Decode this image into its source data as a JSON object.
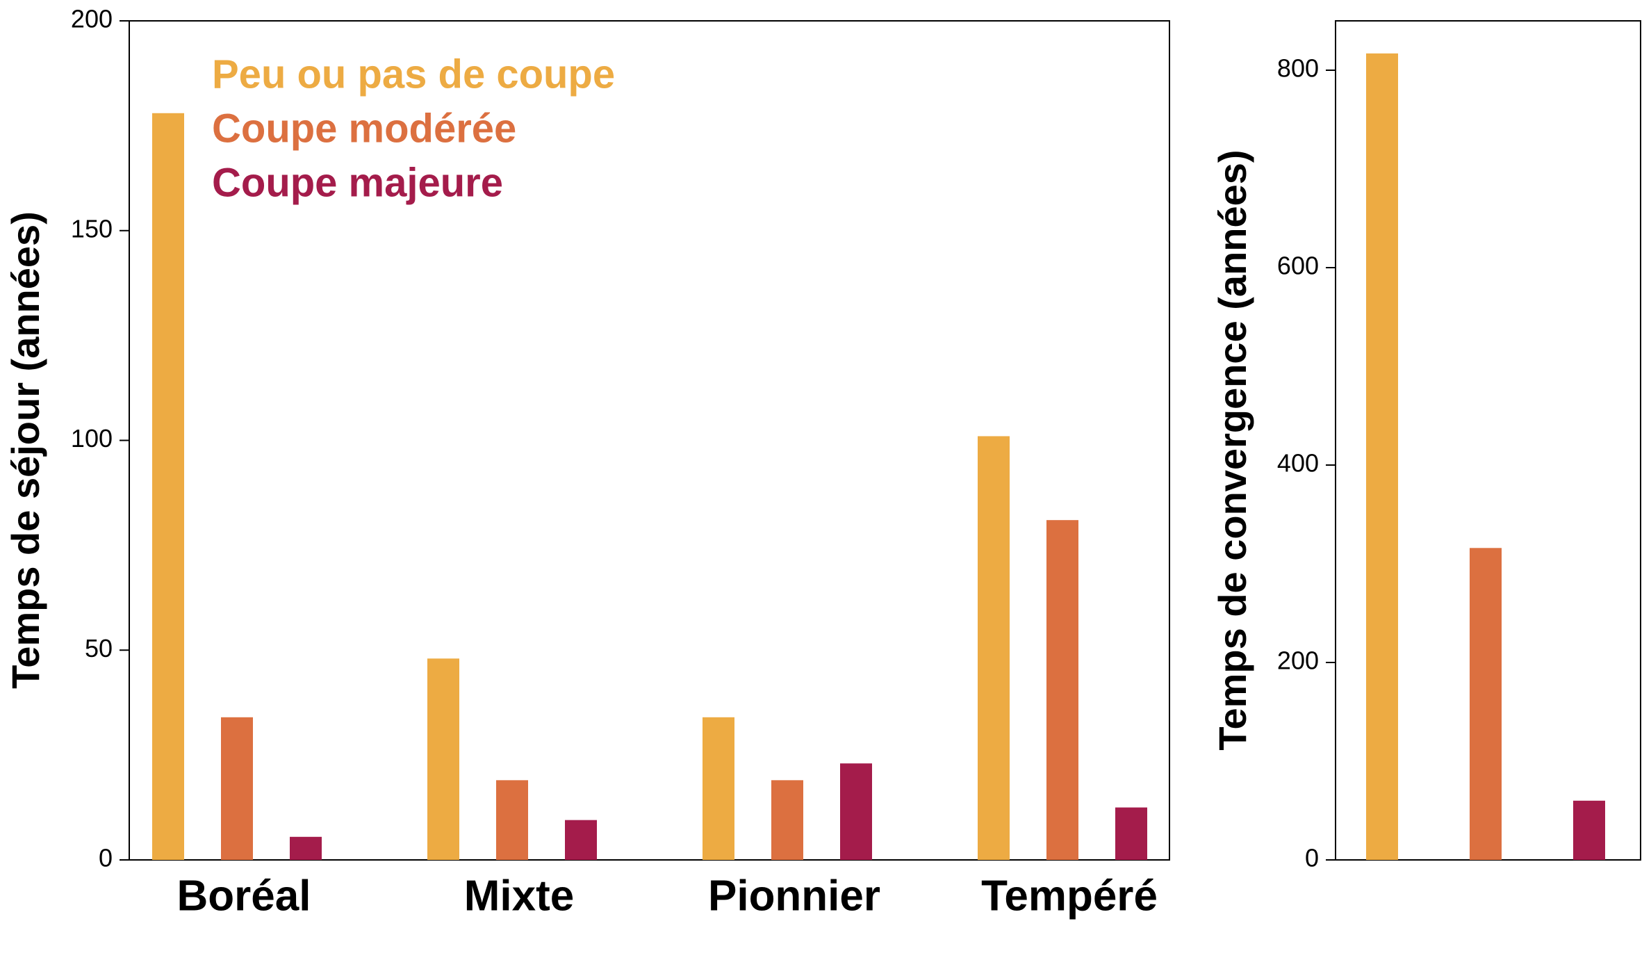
{
  "chart_data": [
    {
      "type": "bar",
      "y_label": "Temps de séjour (années)",
      "categories": [
        "Boréal",
        "Mixte",
        "Pionnier",
        "Tempéré"
      ],
      "series": [
        {
          "name": "Peu ou pas de coupe",
          "color": "#edab43",
          "values": [
            178,
            48,
            34,
            101
          ]
        },
        {
          "name": "Coupe modérée",
          "color": "#dc7040",
          "values": [
            34,
            19,
            19,
            81
          ]
        },
        {
          "name": "Coupe majeure",
          "color": "#a41c4b",
          "values": [
            5.5,
            9.5,
            23,
            12.5
          ]
        }
      ],
      "ylim": [
        0,
        200
      ],
      "yticks": [
        0,
        50,
        100,
        150,
        200
      ],
      "legend": "top-left"
    },
    {
      "type": "bar",
      "y_label": "Temps de convergence (années)",
      "series": [
        {
          "color": "#edab43",
          "values": [
            817
          ]
        },
        {
          "color": "#dc7040",
          "values": [
            316
          ]
        },
        {
          "color": "#a41c4b",
          "values": [
            60
          ]
        }
      ],
      "ylim": [
        0,
        850
      ],
      "yticks": [
        0,
        200,
        400,
        600,
        800
      ]
    }
  ]
}
